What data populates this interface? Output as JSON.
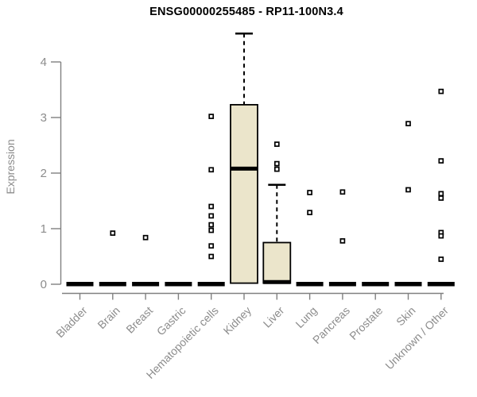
{
  "chart_data": {
    "type": "boxplot",
    "title": "ENSG00000255485 - RP11-100N3.4",
    "ylabel": "Expression",
    "xlabel": "",
    "ylim": [
      0,
      4.6
    ],
    "yticks": [
      0,
      1,
      2,
      3,
      4
    ],
    "grid": false,
    "legend": "none",
    "categories": [
      "Bladder",
      "Brain",
      "Breast",
      "Gastric",
      "Hematopoietic cells",
      "Kidney",
      "Liver",
      "Lung",
      "Pancreas",
      "Prostate",
      "Skin",
      "Unknown / Other"
    ],
    "boxes": [
      {
        "category": "Bladder",
        "q1": 0,
        "median": 0,
        "q3": 0,
        "whisker_low": 0,
        "whisker_high": 0,
        "outliers": []
      },
      {
        "category": "Brain",
        "q1": 0,
        "median": 0,
        "q3": 0,
        "whisker_low": 0,
        "whisker_high": 0,
        "outliers": [
          0.92
        ]
      },
      {
        "category": "Breast",
        "q1": 0,
        "median": 0,
        "q3": 0,
        "whisker_low": 0,
        "whisker_high": 0,
        "outliers": [
          0.84
        ]
      },
      {
        "category": "Gastric",
        "q1": 0,
        "median": 0,
        "q3": 0,
        "whisker_low": 0,
        "whisker_high": 0,
        "outliers": []
      },
      {
        "category": "Hematopoietic cells",
        "q1": 0,
        "median": 0,
        "q3": 0,
        "whisker_low": 0,
        "whisker_high": 0,
        "outliers": [
          3.02,
          2.06,
          1.4,
          1.23,
          1.07,
          0.97,
          0.69,
          0.5
        ]
      },
      {
        "category": "Kidney",
        "q1": 0.02,
        "median": 2.08,
        "q3": 3.23,
        "whisker_low": 0.02,
        "whisker_high": 4.51,
        "outliers": []
      },
      {
        "category": "Liver",
        "q1": 0.02,
        "median": 0.04,
        "q3": 0.75,
        "whisker_low": 0.02,
        "whisker_high": 1.79,
        "outliers": [
          2.52,
          2.17,
          2.07
        ]
      },
      {
        "category": "Lung",
        "q1": 0,
        "median": 0,
        "q3": 0,
        "whisker_low": 0,
        "whisker_high": 0,
        "outliers": [
          1.65,
          1.29
        ]
      },
      {
        "category": "Pancreas",
        "q1": 0,
        "median": 0,
        "q3": 0,
        "whisker_low": 0,
        "whisker_high": 0,
        "outliers": [
          1.66,
          0.78
        ]
      },
      {
        "category": "Prostate",
        "q1": 0,
        "median": 0,
        "q3": 0,
        "whisker_low": 0,
        "whisker_high": 0,
        "outliers": []
      },
      {
        "category": "Skin",
        "q1": 0,
        "median": 0,
        "q3": 0,
        "whisker_low": 0,
        "whisker_high": 0,
        "outliers": [
          2.89,
          1.7
        ]
      },
      {
        "category": "Unknown / Other",
        "q1": 0,
        "median": 0,
        "q3": 0,
        "whisker_low": 0,
        "whisker_high": 0,
        "outliers": [
          3.47,
          2.22,
          1.63,
          1.55,
          0.93,
          0.87,
          0.45
        ]
      }
    ],
    "colors": {
      "background": "#ffffff",
      "box_fill": "#ebe5cb",
      "box_stroke": "#000000",
      "median": "#000000",
      "whisker": "#000000",
      "outlier_stroke": "#000000",
      "outlier_fill": "#ffffff",
      "axis": "#808080",
      "tick_label": "#8c8c8c",
      "title": "#000000"
    }
  }
}
